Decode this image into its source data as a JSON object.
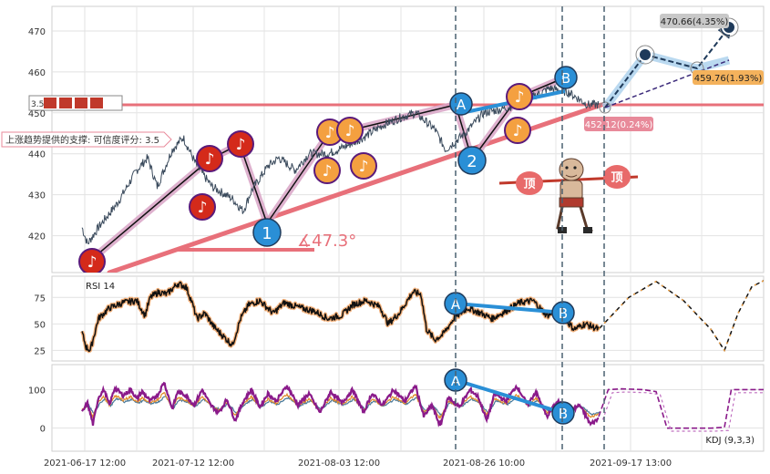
{
  "chart_data": {
    "type": "line",
    "panels": [
      {
        "name": "price",
        "y_ticks": [
          420,
          430,
          440,
          450,
          460,
          470
        ],
        "ylim": [
          411,
          476
        ],
        "ref_line_price": 452.12,
        "ref_label": "452.12(0.24%)",
        "target_high": {
          "value": 470.66,
          "label": "470.66(4.35%)"
        },
        "target_low": {
          "value": 459.76,
          "label": "459.76(1.93%)"
        },
        "support_label": "上涨趋势提供的支撑: 可信度评分: 3.5",
        "left_label": "3.5",
        "angle_label": "∡47.3°",
        "pattern_labels": [
          "1",
          "2",
          "A",
          "B"
        ],
        "note_glyph": "♪",
        "top_glyph": "顶"
      },
      {
        "name": "rsi",
        "title": "RSI 14",
        "y_ticks": [
          25,
          50,
          75
        ],
        "ylim": [
          15,
          95
        ],
        "pattern_labels": [
          "A",
          "B"
        ]
      },
      {
        "name": "kdj",
        "title": "KDJ (9,3,3)",
        "y_ticks": [
          0,
          100
        ],
        "ylim": [
          -60,
          165
        ],
        "pattern_labels": [
          "A",
          "B"
        ]
      }
    ],
    "x_tick_labels": [
      "2021-06-17 12:00",
      "2021-07-12 12:00",
      "2021-08-03 12:00",
      "2021-08-26 10:00",
      "2021-09-17 13:00"
    ],
    "price_keypoints": [
      [
        0,
        422
      ],
      [
        4,
        418
      ],
      [
        12,
        422
      ],
      [
        26,
        428
      ],
      [
        40,
        436
      ],
      [
        48,
        439
      ],
      [
        55,
        432
      ],
      [
        66,
        441
      ],
      [
        74,
        444
      ],
      [
        84,
        437
      ],
      [
        95,
        432
      ],
      [
        110,
        429
      ],
      [
        118,
        426
      ],
      [
        124,
        431
      ],
      [
        136,
        437
      ],
      [
        144,
        439
      ],
      [
        156,
        436
      ],
      [
        166,
        440
      ],
      [
        180,
        440
      ],
      [
        194,
        442
      ],
      [
        206,
        444
      ],
      [
        220,
        447
      ],
      [
        234,
        449
      ],
      [
        244,
        450
      ],
      [
        258,
        446
      ],
      [
        266,
        441
      ],
      [
        280,
        445
      ],
      [
        294,
        450
      ],
      [
        308,
        451
      ],
      [
        318,
        452
      ],
      [
        330,
        454
      ],
      [
        342,
        456
      ],
      [
        356,
        455
      ],
      [
        370,
        452
      ],
      [
        378,
        452
      ]
    ],
    "rsi_keypoints": [
      [
        0,
        42
      ],
      [
        3,
        28
      ],
      [
        6,
        25
      ],
      [
        12,
        55
      ],
      [
        20,
        65
      ],
      [
        30,
        70
      ],
      [
        40,
        72
      ],
      [
        46,
        58
      ],
      [
        50,
        75
      ],
      [
        56,
        80
      ],
      [
        62,
        78
      ],
      [
        70,
        88
      ],
      [
        76,
        85
      ],
      [
        80,
        72
      ],
      [
        84,
        55
      ],
      [
        90,
        60
      ],
      [
        96,
        48
      ],
      [
        102,
        40
      ],
      [
        110,
        30
      ],
      [
        116,
        55
      ],
      [
        122,
        68
      ],
      [
        130,
        72
      ],
      [
        140,
        60
      ],
      [
        148,
        70
      ],
      [
        160,
        65
      ],
      [
        170,
        62
      ],
      [
        180,
        55
      ],
      [
        190,
        58
      ],
      [
        198,
        68
      ],
      [
        208,
        72
      ],
      [
        218,
        66
      ],
      [
        224,
        50
      ],
      [
        232,
        60
      ],
      [
        242,
        80
      ],
      [
        248,
        78
      ],
      [
        252,
        45
      ],
      [
        258,
        35
      ],
      [
        264,
        40
      ],
      [
        272,
        55
      ],
      [
        282,
        65
      ],
      [
        292,
        60
      ],
      [
        300,
        55
      ],
      [
        310,
        62
      ],
      [
        320,
        70
      ],
      [
        330,
        72
      ],
      [
        340,
        58
      ],
      [
        348,
        62
      ],
      [
        360,
        45
      ],
      [
        368,
        50
      ],
      [
        378,
        45
      ]
    ],
    "rsi_forecast": [
      [
        378,
        45
      ],
      [
        400,
        75
      ],
      [
        420,
        90
      ],
      [
        440,
        72
      ],
      [
        460,
        45
      ],
      [
        470,
        25
      ],
      [
        480,
        60
      ],
      [
        490,
        85
      ],
      [
        505,
        95
      ]
    ],
    "kdj_k_keypoints": [
      [
        0,
        40
      ],
      [
        4,
        65
      ],
      [
        8,
        10
      ],
      [
        12,
        80
      ],
      [
        16,
        100
      ],
      [
        20,
        60
      ],
      [
        24,
        105
      ],
      [
        30,
        85
      ],
      [
        36,
        100
      ],
      [
        40,
        75
      ],
      [
        44,
        95
      ],
      [
        50,
        70
      ],
      [
        56,
        90
      ],
      [
        60,
        120
      ],
      [
        66,
        50
      ],
      [
        70,
        95
      ],
      [
        76,
        85
      ],
      [
        82,
        60
      ],
      [
        88,
        100
      ],
      [
        94,
        60
      ],
      [
        100,
        40
      ],
      [
        106,
        75
      ],
      [
        112,
        20
      ],
      [
        118,
        70
      ],
      [
        124,
        100
      ],
      [
        130,
        55
      ],
      [
        136,
        90
      ],
      [
        142,
        70
      ],
      [
        150,
        110
      ],
      [
        158,
        60
      ],
      [
        166,
        90
      ],
      [
        174,
        40
      ],
      [
        182,
        95
      ],
      [
        190,
        65
      ],
      [
        198,
        100
      ],
      [
        206,
        40
      ],
      [
        212,
        90
      ],
      [
        220,
        60
      ],
      [
        228,
        100
      ],
      [
        236,
        70
      ],
      [
        244,
        110
      ],
      [
        250,
        30
      ],
      [
        256,
        60
      ],
      [
        262,
        5
      ],
      [
        268,
        80
      ],
      [
        276,
        55
      ],
      [
        284,
        100
      ],
      [
        290,
        80
      ],
      [
        296,
        20
      ],
      [
        302,
        90
      ],
      [
        310,
        70
      ],
      [
        318,
        110
      ],
      [
        326,
        60
      ],
      [
        332,
        95
      ],
      [
        340,
        30
      ],
      [
        348,
        70
      ],
      [
        356,
        40
      ],
      [
        364,
        60
      ],
      [
        372,
        10
      ],
      [
        378,
        25
      ]
    ],
    "kdj_forecast": [
      [
        378,
        30
      ],
      [
        385,
        100
      ],
      [
        395,
        102
      ],
      [
        410,
        100
      ],
      [
        420,
        95
      ],
      [
        428,
        0
      ],
      [
        440,
        0
      ],
      [
        460,
        0
      ],
      [
        470,
        2
      ],
      [
        475,
        100
      ],
      [
        485,
        100
      ],
      [
        505,
        100
      ]
    ]
  }
}
